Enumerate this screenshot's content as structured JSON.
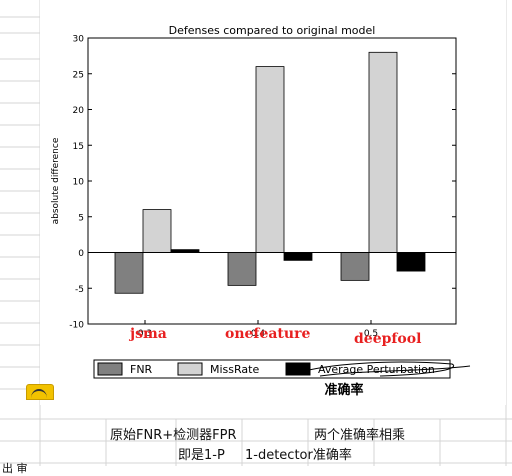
{
  "chart_data": {
    "type": "bar",
    "title": "Defenses compared to original model",
    "ylabel": "absolute difference",
    "xlabel": "",
    "categories": [
      "0.3",
      "0.4",
      "0.5"
    ],
    "series": [
      {
        "name": "FNR",
        "values": [
          -5.7,
          -4.6,
          -3.9
        ],
        "color": "#808080"
      },
      {
        "name": "MissRate",
        "values": [
          6.0,
          26.0,
          28.0
        ],
        "color": "#d3d3d3"
      },
      {
        "name": "Average Perturbation",
        "values": [
          0.4,
          -1.1,
          -2.6
        ],
        "color": "#000000"
      }
    ],
    "ylim": [
      -10,
      30
    ],
    "yticks": [
      -10,
      -5,
      0,
      5,
      10,
      15,
      20,
      25,
      30
    ],
    "legend": "bottom",
    "grid": false
  },
  "annotations": {
    "category_names": [
      "jsma",
      "onefeature",
      "deepfool"
    ],
    "accuracy_note": "准确率"
  },
  "sheet": {
    "row1_left": "原始FNR+检测器FPR",
    "row1_right": "两个准确率相乘",
    "row2_left": "即是1-P",
    "row2_right": "1-detector准确率",
    "row3_partial": "出 审"
  }
}
